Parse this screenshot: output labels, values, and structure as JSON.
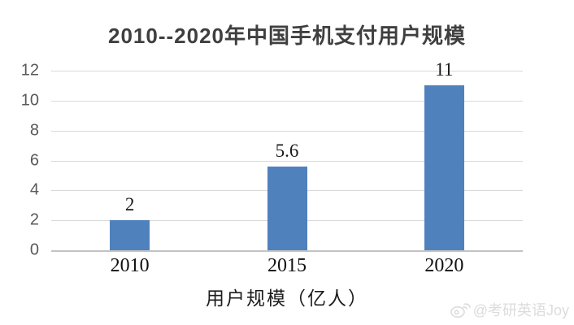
{
  "chart_data": {
    "type": "bar",
    "title": "2010--2020年中国手机支付用户规模",
    "categories": [
      "2010",
      "2015",
      "2020"
    ],
    "values": [
      2,
      5.6,
      11
    ],
    "data_labels": [
      "2",
      "5.6",
      "11"
    ],
    "xlabel": "用户规模（亿人）",
    "ylabel": "",
    "ylim": [
      0,
      12
    ],
    "yticks": [
      0,
      2,
      4,
      6,
      8,
      10,
      12
    ],
    "grid": true,
    "legend": "none",
    "bar_color": "#4F81BD",
    "gridline_color": "#d9d9d9",
    "axis_line_color": "#c3c3c3"
  },
  "watermark": {
    "text": "@考研英语Joy",
    "icon": "weibo-icon",
    "color": "#dcdcdc"
  }
}
